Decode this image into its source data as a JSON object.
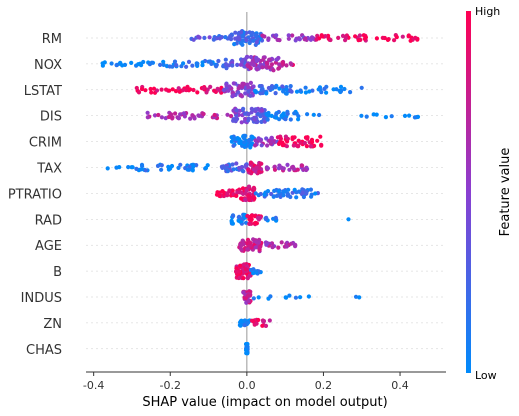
{
  "chart_data": {
    "type": "scatter",
    "subtype": "beeswarm",
    "title": "",
    "xlabel": "SHAP value (impact on model output)",
    "ylabel": "",
    "xlim": [
      -0.42,
      0.52
    ],
    "xticks": [
      "-0.4",
      "-0.2",
      "0.0",
      "0.2",
      "0.4"
    ],
    "xtick_values": [
      -0.4,
      -0.2,
      0.0,
      0.2,
      0.4
    ],
    "colorbar": {
      "title": "Feature value",
      "high_label": "High",
      "low_label": "Low",
      "low_color": "#008bfb",
      "mid_color": "#8a3fd1",
      "high_color": "#ff0052"
    },
    "grid": false,
    "features": [
      {
        "name": "RM",
        "clusters": [
          {
            "lo": -0.04,
            "hi": 0.04,
            "f": 0.2,
            "n": 60,
            "w": 7
          },
          {
            "lo": -0.18,
            "hi": -0.04,
            "f": 0.3,
            "n": 18,
            "w": 2
          },
          {
            "lo": 0.04,
            "hi": 0.18,
            "f": 0.55,
            "n": 30,
            "w": 3
          },
          {
            "lo": 0.18,
            "hi": 0.45,
            "f": 0.95,
            "n": 45,
            "w": 3
          }
        ]
      },
      {
        "name": "NOX",
        "clusters": [
          {
            "lo": -0.38,
            "hi": -0.25,
            "f": 0.0,
            "n": 20,
            "w": 2
          },
          {
            "lo": -0.25,
            "hi": -0.06,
            "f": 0.1,
            "n": 35,
            "w": 3
          },
          {
            "lo": -0.06,
            "hi": 0.0,
            "f": 0.35,
            "n": 20,
            "w": 5
          },
          {
            "lo": 0.0,
            "hi": 0.09,
            "f": 0.6,
            "n": 60,
            "w": 7
          },
          {
            "lo": 0.09,
            "hi": 0.13,
            "f": 0.8,
            "n": 8,
            "w": 3
          }
        ]
      },
      {
        "name": "LSTAT",
        "clusters": [
          {
            "lo": -0.3,
            "hi": -0.06,
            "f": 0.95,
            "n": 45,
            "w": 3
          },
          {
            "lo": -0.06,
            "hi": 0.02,
            "f": 0.5,
            "n": 60,
            "w": 7
          },
          {
            "lo": 0.02,
            "hi": 0.12,
            "f": 0.15,
            "n": 40,
            "w": 4
          },
          {
            "lo": 0.12,
            "hi": 0.3,
            "f": 0.05,
            "n": 25,
            "w": 3
          }
        ]
      },
      {
        "name": "DIS",
        "clusters": [
          {
            "lo": -0.26,
            "hi": -0.04,
            "f": 0.65,
            "n": 40,
            "w": 3
          },
          {
            "lo": -0.04,
            "hi": 0.05,
            "f": 0.4,
            "n": 70,
            "w": 7
          },
          {
            "lo": 0.05,
            "hi": 0.14,
            "f": 0.05,
            "n": 30,
            "w": 4
          },
          {
            "lo": 0.14,
            "hi": 0.48,
            "f": 0.0,
            "n": 14,
            "w": 2
          }
        ]
      },
      {
        "name": "CRIM",
        "clusters": [
          {
            "lo": -0.04,
            "hi": 0.02,
            "f": 0.05,
            "n": 50,
            "w": 6
          },
          {
            "lo": 0.02,
            "hi": 0.08,
            "f": 0.55,
            "n": 25,
            "w": 4
          },
          {
            "lo": 0.08,
            "hi": 0.2,
            "f": 0.95,
            "n": 45,
            "w": 5
          }
        ]
      },
      {
        "name": "TAX",
        "clusters": [
          {
            "lo": -0.38,
            "hi": -0.29,
            "f": 0.0,
            "n": 6,
            "w": 1
          },
          {
            "lo": -0.29,
            "hi": -0.1,
            "f": 0.05,
            "n": 35,
            "w": 3
          },
          {
            "lo": -0.07,
            "hi": 0.0,
            "f": 0.25,
            "n": 30,
            "w": 4
          },
          {
            "lo": 0.0,
            "hi": 0.04,
            "f": 0.85,
            "n": 35,
            "w": 6
          },
          {
            "lo": 0.04,
            "hi": 0.16,
            "f": 0.65,
            "n": 30,
            "w": 3
          }
        ]
      },
      {
        "name": "PTRATIO",
        "clusters": [
          {
            "lo": -0.08,
            "hi": -0.02,
            "f": 0.95,
            "n": 25,
            "w": 3
          },
          {
            "lo": -0.02,
            "hi": 0.02,
            "f": 0.9,
            "n": 45,
            "w": 7
          },
          {
            "lo": 0.02,
            "hi": 0.19,
            "f": 0.15,
            "n": 55,
            "w": 4
          }
        ]
      },
      {
        "name": "RAD",
        "clusters": [
          {
            "lo": -0.04,
            "hi": 0.0,
            "f": 0.05,
            "n": 25,
            "w": 5
          },
          {
            "lo": 0.0,
            "hi": 0.04,
            "f": 0.9,
            "n": 25,
            "w": 5
          },
          {
            "lo": 0.04,
            "hi": 0.1,
            "f": 0.05,
            "n": 8,
            "w": 2
          },
          {
            "lo": 0.26,
            "hi": 0.27,
            "f": 0.0,
            "n": 1,
            "w": 0
          }
        ]
      },
      {
        "name": "AGE",
        "clusters": [
          {
            "lo": -0.02,
            "hi": 0.04,
            "f": 0.75,
            "n": 55,
            "w": 6
          },
          {
            "lo": 0.04,
            "hi": 0.13,
            "f": 0.6,
            "n": 20,
            "w": 3
          }
        ]
      },
      {
        "name": "B",
        "clusters": [
          {
            "lo": -0.03,
            "hi": 0.01,
            "f": 0.9,
            "n": 70,
            "w": 7
          },
          {
            "lo": 0.01,
            "hi": 0.04,
            "f": 0.1,
            "n": 10,
            "w": 3
          }
        ]
      },
      {
        "name": "INDUS",
        "clusters": [
          {
            "lo": -0.01,
            "hi": 0.01,
            "f": 0.7,
            "n": 40,
            "w": 6
          },
          {
            "lo": 0.01,
            "hi": 0.17,
            "f": 0.05,
            "n": 10,
            "w": 2
          },
          {
            "lo": 0.27,
            "hi": 0.3,
            "f": 0.0,
            "n": 2,
            "w": 1
          }
        ]
      },
      {
        "name": "ZN",
        "clusters": [
          {
            "lo": -0.02,
            "hi": 0.01,
            "f": 0.05,
            "n": 20,
            "w": 3
          },
          {
            "lo": 0.01,
            "hi": 0.06,
            "f": 0.9,
            "n": 15,
            "w": 3
          }
        ]
      },
      {
        "name": "CHAS",
        "clusters": [
          {
            "lo": -0.002,
            "hi": 0.002,
            "f": 0.0,
            "n": 30,
            "w": 5
          }
        ]
      }
    ]
  }
}
